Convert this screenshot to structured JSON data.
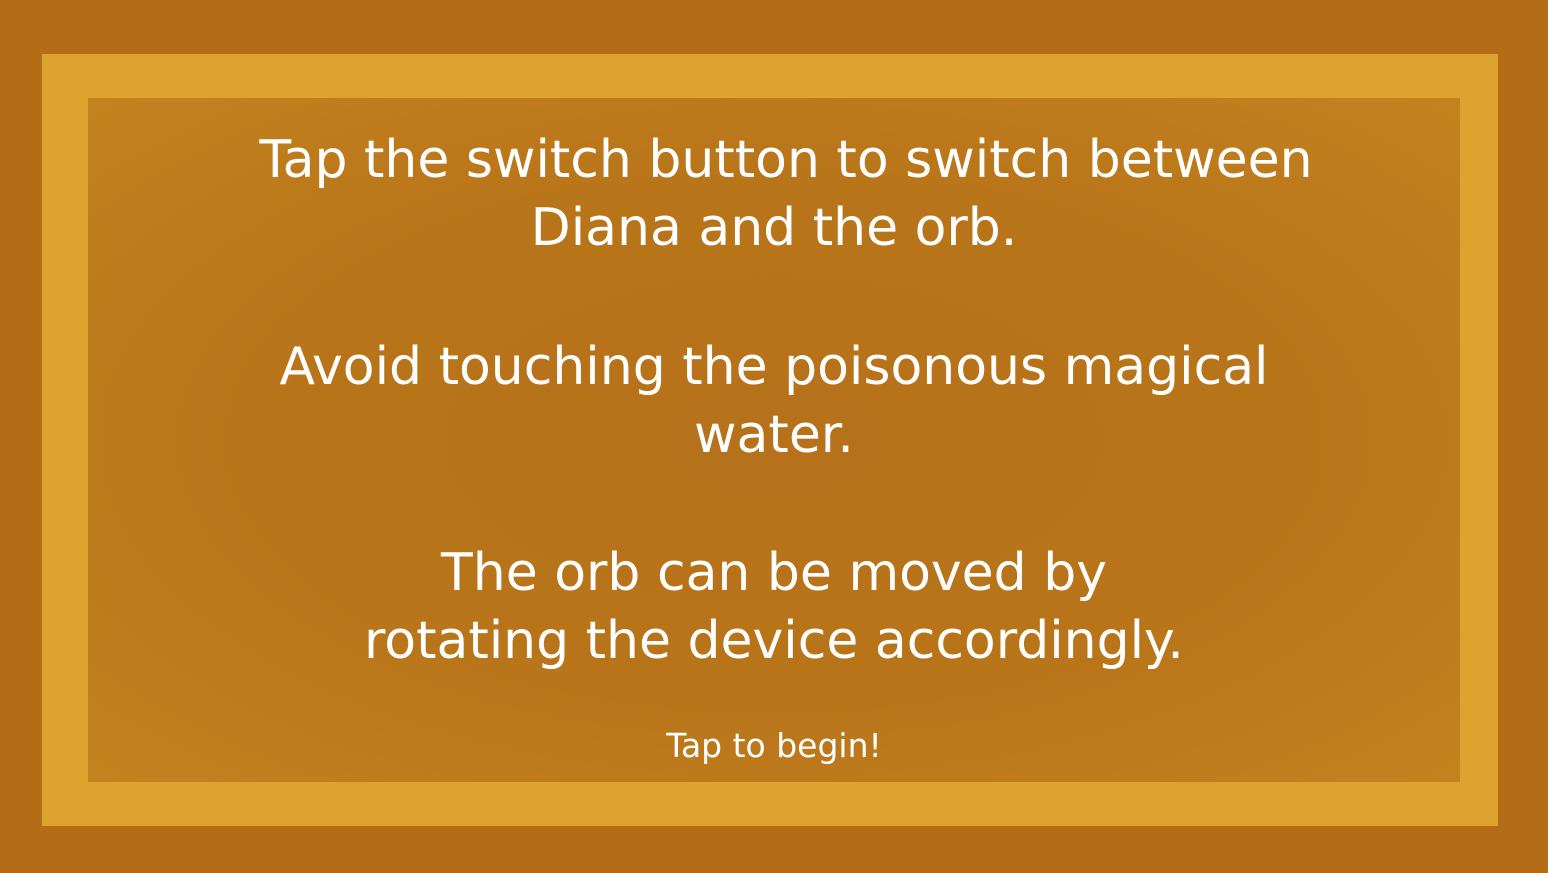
{
  "instructions": {
    "lines": [
      "Tap the switch button to switch between",
      "Diana and the orb.",
      "Avoid touching the poisonous magical",
      "water.",
      "The orb can be moved by",
      "rotating the device accordingly."
    ]
  },
  "prompt": {
    "begin_label": "Tap to begin!"
  },
  "colors": {
    "background": "#b46d16",
    "frame": "#dea22f",
    "panel": "#b97519",
    "text": "#ffffff"
  }
}
